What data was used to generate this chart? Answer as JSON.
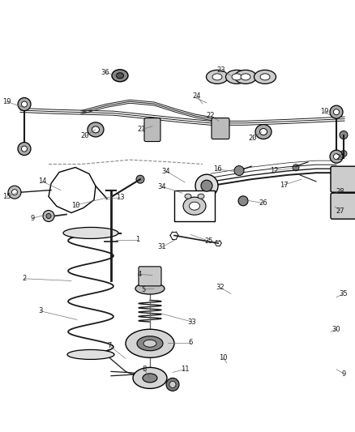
{
  "bg_color": "#ffffff",
  "fig_width": 4.39,
  "fig_height": 5.33,
  "line_color": "#1a1a1a",
  "label_color": "#1a1a1a",
  "font_size": 6.0
}
